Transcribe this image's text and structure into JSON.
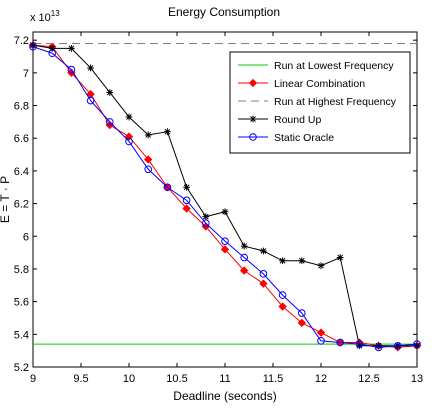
{
  "chart_data": {
    "type": "line",
    "title": "Energy Consumption",
    "xlabel": "Deadline (seconds)",
    "ylabel": "E = T · P",
    "y_exponent_label": "x 10",
    "y_exponent_power": "13",
    "xlim": [
      9,
      13
    ],
    "ylim": [
      5.2,
      7.25
    ],
    "x_ticks": [
      "9",
      "9.5",
      "10",
      "10.5",
      "11",
      "11.5",
      "12",
      "12.5",
      "13"
    ],
    "y_ticks": [
      "5.2",
      "5.4",
      "5.6",
      "5.8",
      "6",
      "6.2",
      "6.4",
      "6.6",
      "6.8",
      "7",
      "7.2"
    ],
    "grid": false,
    "legend_position": "top-right",
    "series": [
      {
        "name": "Run at Lowest Frequency",
        "color": "#00cc00",
        "dash": "solid",
        "marker": "none",
        "x": [
          9,
          13
        ],
        "y": [
          5.34,
          5.34
        ]
      },
      {
        "name": "Linear Combination",
        "color": "#ff0000",
        "dash": "solid",
        "marker": "diamond",
        "x": [
          9.0,
          9.2,
          9.4,
          9.6,
          9.8,
          10.0,
          10.2,
          10.4,
          10.6,
          10.8,
          11.0,
          11.2,
          11.4,
          11.6,
          11.8,
          12.0,
          12.2,
          12.4,
          12.6,
          12.8,
          13.0
        ],
        "y": [
          7.17,
          7.16,
          7.0,
          6.87,
          6.68,
          6.61,
          6.47,
          6.3,
          6.17,
          6.06,
          5.92,
          5.79,
          5.71,
          5.57,
          5.47,
          5.41,
          5.35,
          5.35,
          5.33,
          5.32,
          5.33
        ]
      },
      {
        "name": "Run at Highest Frequency",
        "color": "#808080",
        "dash": "dashed",
        "marker": "none",
        "x": [
          9,
          13
        ],
        "y": [
          7.18,
          7.18
        ]
      },
      {
        "name": "Round Up",
        "color": "#000000",
        "dash": "solid",
        "marker": "star",
        "x": [
          9.0,
          9.2,
          9.4,
          9.6,
          9.8,
          10.0,
          10.2,
          10.4,
          10.6,
          10.8,
          11.0,
          11.2,
          11.4,
          11.6,
          11.8,
          12.0,
          12.2,
          12.4,
          12.6,
          12.8,
          13.0
        ],
        "y": [
          7.17,
          7.15,
          7.15,
          7.03,
          6.88,
          6.73,
          6.62,
          6.64,
          6.3,
          6.12,
          6.15,
          5.94,
          5.91,
          5.85,
          5.85,
          5.82,
          5.87,
          5.33,
          5.33,
          5.33,
          5.33
        ]
      },
      {
        "name": "Static Oracle",
        "color": "#0000ff",
        "dash": "solid",
        "marker": "circle",
        "x": [
          9.0,
          9.2,
          9.4,
          9.6,
          9.8,
          10.0,
          10.2,
          10.4,
          10.6,
          10.8,
          11.0,
          11.2,
          11.4,
          11.6,
          11.8,
          12.0,
          12.2,
          12.4,
          12.6,
          12.8,
          13.0
        ],
        "y": [
          7.16,
          7.12,
          7.02,
          6.83,
          6.7,
          6.58,
          6.41,
          6.3,
          6.22,
          6.08,
          5.97,
          5.87,
          5.77,
          5.64,
          5.53,
          5.36,
          5.35,
          5.34,
          5.32,
          5.33,
          5.34
        ]
      }
    ]
  }
}
